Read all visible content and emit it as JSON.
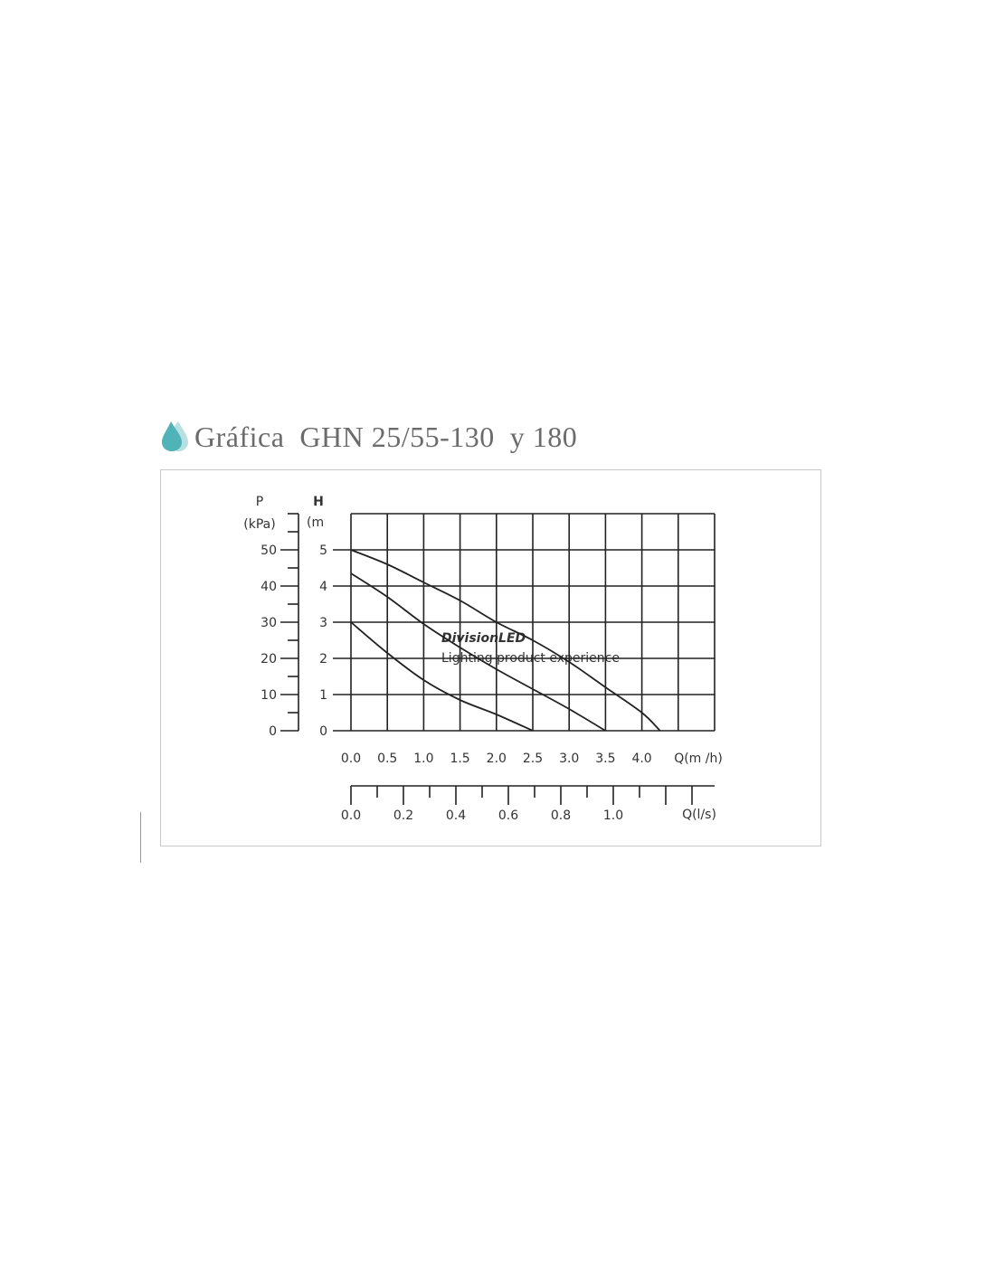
{
  "title": "Gráfica  GHN 25/55-130  y 180",
  "icon": "water-drop-icon",
  "accent_color": "#4fb3b8",
  "watermark": {
    "brand": "DivisionLED",
    "tagline": "Lighting product experience"
  },
  "chart_data": {
    "type": "line",
    "title": "Gráfica  GHN 25/55-130  y 180",
    "xlabel": "Q(m /h)",
    "x2label": "Q(l/s)",
    "ylabel": "H (m",
    "y2label": "P (kPa)",
    "y_label_top": "H",
    "y_label_unit": "(m",
    "p_label_top": "P",
    "p_label_unit": "(kPa)",
    "xlim": [
      0,
      5
    ],
    "ylim": [
      0,
      6
    ],
    "grid": true,
    "x_ticks": [
      "0.0",
      "0.5",
      "1.0",
      "1.5",
      "2.0",
      "2.5",
      "3.0",
      "3.5",
      "4.0"
    ],
    "y_ticks": [
      "0",
      "1",
      "2",
      "3",
      "4",
      "5"
    ],
    "p_ticks": [
      "0",
      "10",
      "20",
      "30",
      "40",
      "50"
    ],
    "x2_ticks": [
      "0.0",
      "0.2",
      "0.4",
      "0.6",
      "0.8",
      "1.0"
    ],
    "series": [
      {
        "x": [
          0,
          0.5,
          1,
          1.5,
          2,
          2.5,
          3,
          3.5,
          4,
          4.25
        ],
        "y": [
          5,
          4.6,
          4.1,
          3.6,
          3.0,
          2.5,
          1.9,
          1.2,
          0.5,
          0
        ]
      },
      {
        "x": [
          0,
          0.5,
          1,
          1.5,
          2,
          2.5,
          3,
          3.5
        ],
        "y": [
          4.35,
          3.7,
          2.95,
          2.3,
          1.7,
          1.15,
          0.6,
          0
        ]
      },
      {
        "x": [
          0,
          0.5,
          1,
          1.5,
          2,
          2.5
        ],
        "y": [
          3,
          2.15,
          1.4,
          0.85,
          0.45,
          0
        ]
      }
    ]
  }
}
